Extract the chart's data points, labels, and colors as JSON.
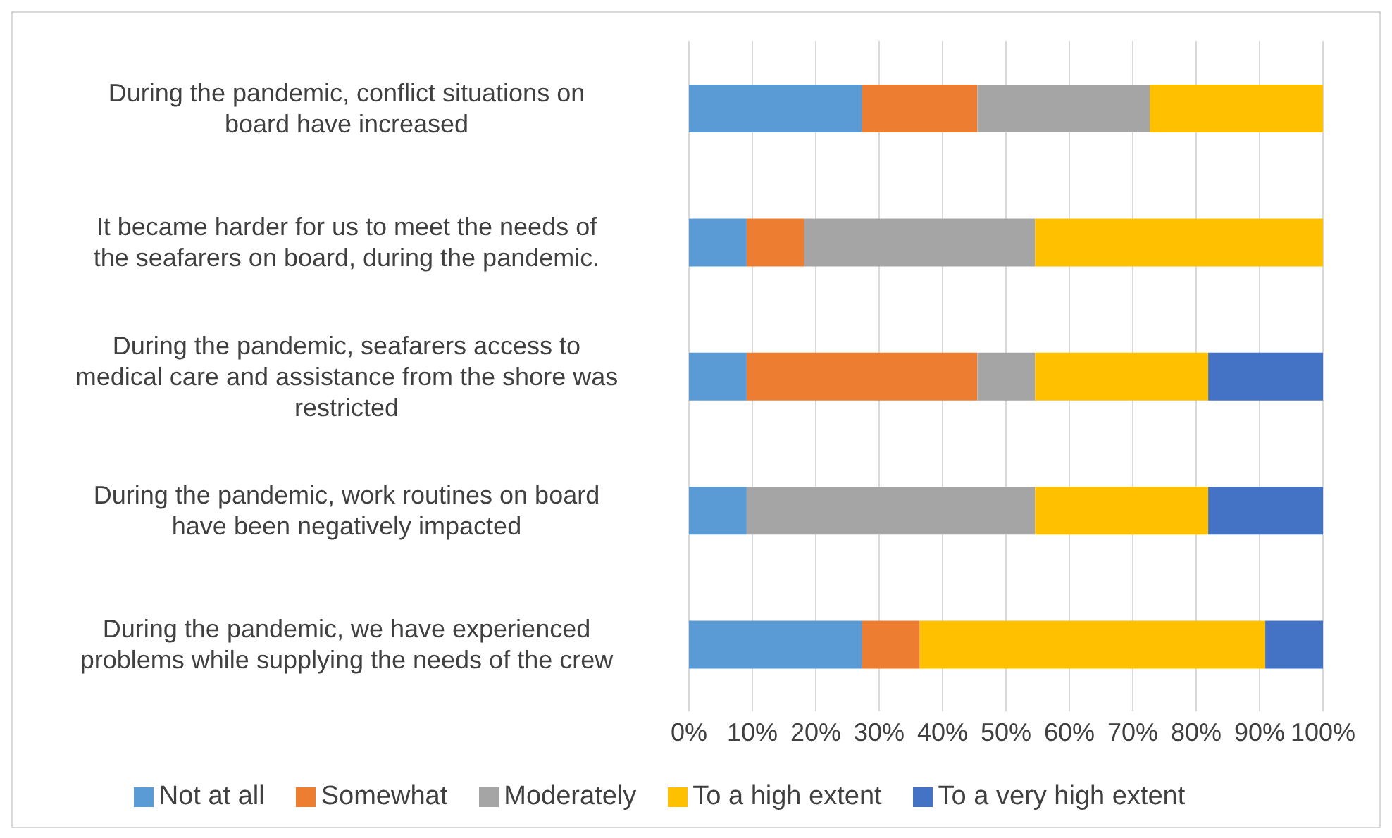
{
  "chart_data": {
    "type": "bar",
    "orientation": "horizontal",
    "stacked": true,
    "categories": [
      "During the pandemic, conflict situations on board have increased",
      "It became harder for us to meet the needs of the seafarers on board, during the pandemic.",
      "During the pandemic, seafarers access to medical care and assistance from the shore was restricted",
      "During the pandemic, work routines on board have been negatively impacted",
      "During the pandemic, we have experienced problems while supplying the needs of the crew"
    ],
    "series": [
      {
        "name": "Not at all",
        "color": "#5b9bd5",
        "values": [
          27.3,
          9.1,
          9.1,
          9.1,
          27.3
        ]
      },
      {
        "name": "Somewhat",
        "color": "#ed7d31",
        "values": [
          18.2,
          9.1,
          36.4,
          0,
          9.1
        ]
      },
      {
        "name": "Moderately",
        "color": "#a5a5a5",
        "values": [
          27.2,
          36.4,
          9.1,
          45.5,
          0
        ]
      },
      {
        "name": "To a high extent",
        "color": "#ffc000",
        "values": [
          27.3,
          45.4,
          27.3,
          27.3,
          54.5
        ]
      },
      {
        "name": "To a very high extent",
        "color": "#4472c4",
        "values": [
          0,
          0,
          18.1,
          18.1,
          9.1
        ]
      }
    ],
    "xlim": [
      0,
      100
    ],
    "xticks": [
      {
        "value": 0,
        "label": "0%"
      },
      {
        "value": 10,
        "label": "10%"
      },
      {
        "value": 20,
        "label": "20%"
      },
      {
        "value": 30,
        "label": "30%"
      },
      {
        "value": 40,
        "label": "40%"
      },
      {
        "value": 50,
        "label": "50%"
      },
      {
        "value": 60,
        "label": "60%"
      },
      {
        "value": 70,
        "label": "70%"
      },
      {
        "value": 80,
        "label": "80%"
      },
      {
        "value": 90,
        "label": "90%"
      },
      {
        "value": 100,
        "label": "100%"
      }
    ],
    "grid": "x",
    "legend": "bottom"
  }
}
